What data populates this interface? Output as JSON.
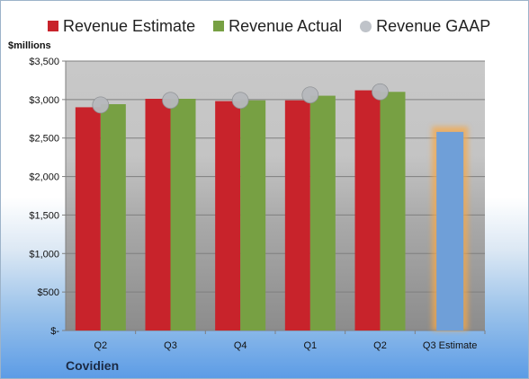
{
  "chart_data": {
    "type": "bar",
    "ylabel": "$millions",
    "ylim": [
      0,
      3500
    ],
    "yticks": [
      {
        "value": 0,
        "label": "$-"
      },
      {
        "value": 500,
        "label": "$500"
      },
      {
        "value": 1000,
        "label": "$1,000"
      },
      {
        "value": 1500,
        "label": "$1,500"
      },
      {
        "value": 2000,
        "label": "$2,000"
      },
      {
        "value": 2500,
        "label": "$2,500"
      },
      {
        "value": 3000,
        "label": "$3,000"
      },
      {
        "value": 3500,
        "label": "$3,500"
      }
    ],
    "categories": [
      "Q2",
      "Q3",
      "Q4",
      "Q1",
      "Q2",
      "Q3 Estimate"
    ],
    "series": [
      {
        "name": "Revenue Estimate",
        "color": "#c8232b",
        "kind": "bar",
        "values": [
          2900,
          3010,
          2980,
          2990,
          3120,
          null
        ]
      },
      {
        "name": "Revenue Actual",
        "color": "#77a043",
        "kind": "bar",
        "values": [
          2940,
          3010,
          2990,
          3050,
          3100,
          null
        ]
      },
      {
        "name": "Revenue GAAP",
        "color": "#bfbfbf",
        "kind": "dot",
        "values": [
          2930,
          2990,
          2990,
          3060,
          3100,
          null
        ]
      }
    ],
    "estimate": {
      "category": "Q3 Estimate",
      "value": 2580,
      "color": "#6f9fd8",
      "glow": "#f5a84a"
    },
    "grid": true,
    "legend": "top"
  },
  "company": "Covidien"
}
